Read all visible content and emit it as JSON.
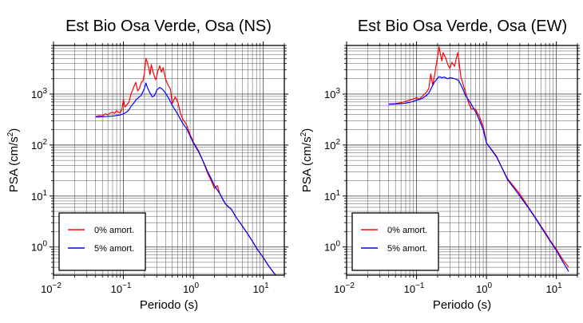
{
  "colors": {
    "undamped": "#ff0000",
    "damped": "#0000ff",
    "grid": "#555555",
    "frame": "#000000"
  },
  "chart_data": [
    {
      "type": "line",
      "title": "Est Bio Osa Verde, Osa (NS)",
      "xlabel": "Periodo (s)",
      "ylabel_main": "PSA (cm/s",
      "ylabel_sup": "2",
      "ylabel_end": ")",
      "xscale": "log",
      "yscale": "log",
      "xlim": [
        0.01,
        20
      ],
      "ylim": [
        0.28,
        9000
      ],
      "xticks": [
        {
          "v": 0.01,
          "base": "10",
          "exp": "−2"
        },
        {
          "v": 0.1,
          "base": "10",
          "exp": "−1"
        },
        {
          "v": 1,
          "base": "10",
          "exp": "0"
        },
        {
          "v": 10,
          "base": "10",
          "exp": "1"
        }
      ],
      "yticks": [
        {
          "v": 1,
          "base": "10",
          "exp": "0"
        },
        {
          "v": 10,
          "base": "10",
          "exp": "1"
        },
        {
          "v": 100,
          "base": "10",
          "exp": "2"
        },
        {
          "v": 1000,
          "base": "10",
          "exp": "3"
        }
      ],
      "grid": true,
      "legend_position": "bottom-left",
      "series": [
        {
          "name": "0% amort.",
          "color": "#ff0000",
          "points": [
            [
              0.04,
              360
            ],
            [
              0.045,
              380
            ],
            [
              0.05,
              370
            ],
            [
              0.055,
              410
            ],
            [
              0.06,
              390
            ],
            [
              0.065,
              430
            ],
            [
              0.07,
              440
            ],
            [
              0.075,
              420
            ],
            [
              0.08,
              470
            ],
            [
              0.085,
              440
            ],
            [
              0.09,
              430
            ],
            [
              0.095,
              500
            ],
            [
              0.1,
              780
            ],
            [
              0.105,
              560
            ],
            [
              0.11,
              600
            ],
            [
              0.12,
              700
            ],
            [
              0.13,
              1050
            ],
            [
              0.14,
              1350
            ],
            [
              0.15,
              1700
            ],
            [
              0.16,
              1150
            ],
            [
              0.17,
              1300
            ],
            [
              0.18,
              1700
            ],
            [
              0.19,
              1800
            ],
            [
              0.2,
              2600
            ],
            [
              0.21,
              5000
            ],
            [
              0.22,
              4200
            ],
            [
              0.23,
              3300
            ],
            [
              0.24,
              2400
            ],
            [
              0.25,
              3800
            ],
            [
              0.27,
              2500
            ],
            [
              0.29,
              1900
            ],
            [
              0.31,
              2800
            ],
            [
              0.33,
              3600
            ],
            [
              0.35,
              2700
            ],
            [
              0.37,
              3300
            ],
            [
              0.4,
              2000
            ],
            [
              0.43,
              1550
            ],
            [
              0.47,
              1250
            ],
            [
              0.5,
              650
            ],
            [
              0.55,
              880
            ],
            [
              0.6,
              700
            ],
            [
              0.65,
              430
            ],
            [
              0.7,
              330
            ],
            [
              0.8,
              250
            ],
            [
              0.9,
              160
            ],
            [
              1.0,
              115
            ],
            [
              1.2,
              75
            ],
            [
              1.4,
              45
            ],
            [
              1.6,
              28
            ],
            [
              1.8,
              20
            ],
            [
              2.0,
              14
            ],
            [
              2.2,
              16
            ],
            [
              2.4,
              11
            ],
            [
              2.7,
              8
            ],
            [
              3.0,
              6.5
            ],
            [
              3.5,
              5.5
            ],
            [
              4,
              4
            ],
            [
              5,
              2.6
            ],
            [
              6,
              1.8
            ],
            [
              7,
              1.3
            ],
            [
              8,
              0.95
            ],
            [
              10,
              0.62
            ],
            [
              12,
              0.42
            ],
            [
              15,
              0.28
            ]
          ]
        },
        {
          "name": "5% amort.",
          "color": "#0000ff",
          "points": [
            [
              0.04,
              355
            ],
            [
              0.05,
              360
            ],
            [
              0.06,
              365
            ],
            [
              0.07,
              370
            ],
            [
              0.08,
              380
            ],
            [
              0.09,
              390
            ],
            [
              0.1,
              410
            ],
            [
              0.11,
              440
            ],
            [
              0.12,
              490
            ],
            [
              0.13,
              590
            ],
            [
              0.14,
              660
            ],
            [
              0.15,
              760
            ],
            [
              0.16,
              830
            ],
            [
              0.18,
              950
            ],
            [
              0.2,
              1300
            ],
            [
              0.21,
              1650
            ],
            [
              0.22,
              1350
            ],
            [
              0.24,
              1050
            ],
            [
              0.26,
              880
            ],
            [
              0.28,
              950
            ],
            [
              0.3,
              1200
            ],
            [
              0.33,
              1350
            ],
            [
              0.36,
              1250
            ],
            [
              0.4,
              1050
            ],
            [
              0.45,
              800
            ],
            [
              0.5,
              600
            ],
            [
              0.6,
              400
            ],
            [
              0.7,
              270
            ],
            [
              0.8,
              210
            ],
            [
              0.9,
              150
            ],
            [
              1.0,
              110
            ],
            [
              1.2,
              72
            ],
            [
              1.4,
              46
            ],
            [
              1.6,
              30
            ],
            [
              1.8,
              22
            ],
            [
              2.0,
              16
            ],
            [
              2.4,
              11
            ],
            [
              2.8,
              7.5
            ],
            [
              3.0,
              6.6
            ],
            [
              3.5,
              5.5
            ],
            [
              4,
              4
            ],
            [
              5,
              2.6
            ],
            [
              6,
              1.8
            ],
            [
              7,
              1.3
            ],
            [
              8,
              0.95
            ],
            [
              10,
              0.62
            ],
            [
              12,
              0.42
            ],
            [
              15,
              0.28
            ]
          ]
        }
      ]
    },
    {
      "type": "line",
      "title": "Est Bio Osa Verde, Osa (EW)",
      "xlabel": "Periodo (s)",
      "ylabel_main": "PSA (cm/s",
      "ylabel_sup": "2",
      "ylabel_end": ")",
      "xscale": "log",
      "yscale": "log",
      "xlim": [
        0.01,
        20
      ],
      "ylim": [
        0.28,
        9000
      ],
      "xticks": [
        {
          "v": 0.01,
          "base": "10",
          "exp": "−2"
        },
        {
          "v": 0.1,
          "base": "10",
          "exp": "−1"
        },
        {
          "v": 1,
          "base": "10",
          "exp": "0"
        },
        {
          "v": 10,
          "base": "10",
          "exp": "1"
        }
      ],
      "yticks": [
        {
          "v": 1,
          "base": "10",
          "exp": "0"
        },
        {
          "v": 10,
          "base": "10",
          "exp": "1"
        },
        {
          "v": 100,
          "base": "10",
          "exp": "2"
        },
        {
          "v": 1000,
          "base": "10",
          "exp": "3"
        }
      ],
      "grid": true,
      "legend_position": "bottom-left",
      "series": [
        {
          "name": "0% amort.",
          "color": "#ff0000",
          "points": [
            [
              0.04,
              640
            ],
            [
              0.05,
              650
            ],
            [
              0.06,
              680
            ],
            [
              0.07,
              720
            ],
            [
              0.08,
              760
            ],
            [
              0.09,
              800
            ],
            [
              0.1,
              850
            ],
            [
              0.11,
              800
            ],
            [
              0.12,
              900
            ],
            [
              0.13,
              1000
            ],
            [
              0.14,
              1100
            ],
            [
              0.15,
              1300
            ],
            [
              0.16,
              2500
            ],
            [
              0.17,
              1500
            ],
            [
              0.18,
              2200
            ],
            [
              0.19,
              3500
            ],
            [
              0.2,
              5500
            ],
            [
              0.21,
              8500
            ],
            [
              0.22,
              6000
            ],
            [
              0.23,
              4500
            ],
            [
              0.24,
              6500
            ],
            [
              0.26,
              5200
            ],
            [
              0.28,
              3800
            ],
            [
              0.3,
              3200
            ],
            [
              0.32,
              4200
            ],
            [
              0.35,
              3500
            ],
            [
              0.37,
              5000
            ],
            [
              0.39,
              6500
            ],
            [
              0.41,
              3800
            ],
            [
              0.43,
              2200
            ],
            [
              0.46,
              1600
            ],
            [
              0.5,
              1100
            ],
            [
              0.55,
              700
            ],
            [
              0.6,
              520
            ],
            [
              0.7,
              500
            ],
            [
              0.8,
              350
            ],
            [
              0.9,
              230
            ],
            [
              1.0,
              110
            ],
            [
              1.2,
              80
            ],
            [
              1.4,
              60
            ],
            [
              1.6,
              40
            ],
            [
              2.0,
              22
            ],
            [
              2.5,
              15
            ],
            [
              3.0,
              11
            ],
            [
              4.0,
              6
            ],
            [
              5,
              3.8
            ],
            [
              6,
              2.6
            ],
            [
              7,
              1.9
            ],
            [
              8,
              1.4
            ],
            [
              10,
              0.9
            ],
            [
              12,
              0.6
            ],
            [
              15,
              0.4
            ]
          ]
        },
        {
          "name": "5% amort.",
          "color": "#0000ff",
          "points": [
            [
              0.04,
              630
            ],
            [
              0.05,
              640
            ],
            [
              0.06,
              650
            ],
            [
              0.07,
              665
            ],
            [
              0.08,
              690
            ],
            [
              0.09,
              720
            ],
            [
              0.1,
              760
            ],
            [
              0.11,
              780
            ],
            [
              0.12,
              820
            ],
            [
              0.13,
              880
            ],
            [
              0.14,
              950
            ],
            [
              0.15,
              1050
            ],
            [
              0.16,
              1250
            ],
            [
              0.18,
              1700
            ],
            [
              0.2,
              2050
            ],
            [
              0.21,
              2200
            ],
            [
              0.23,
              2100
            ],
            [
              0.25,
              2150
            ],
            [
              0.28,
              2000
            ],
            [
              0.3,
              2100
            ],
            [
              0.33,
              2050
            ],
            [
              0.37,
              1950
            ],
            [
              0.4,
              1850
            ],
            [
              0.45,
              1350
            ],
            [
              0.5,
              950
            ],
            [
              0.6,
              650
            ],
            [
              0.7,
              450
            ],
            [
              0.8,
              300
            ],
            [
              0.9,
              200
            ],
            [
              1.0,
              110
            ],
            [
              1.2,
              78
            ],
            [
              1.4,
              58
            ],
            [
              1.6,
              40
            ],
            [
              2.0,
              21
            ],
            [
              2.5,
              14
            ],
            [
              3.0,
              10
            ],
            [
              4.0,
              5.8
            ],
            [
              5,
              3.7
            ],
            [
              6,
              2.5
            ],
            [
              7,
              1.8
            ],
            [
              8,
              1.35
            ],
            [
              10,
              0.85
            ],
            [
              12,
              0.55
            ],
            [
              15,
              0.33
            ]
          ]
        }
      ]
    }
  ]
}
